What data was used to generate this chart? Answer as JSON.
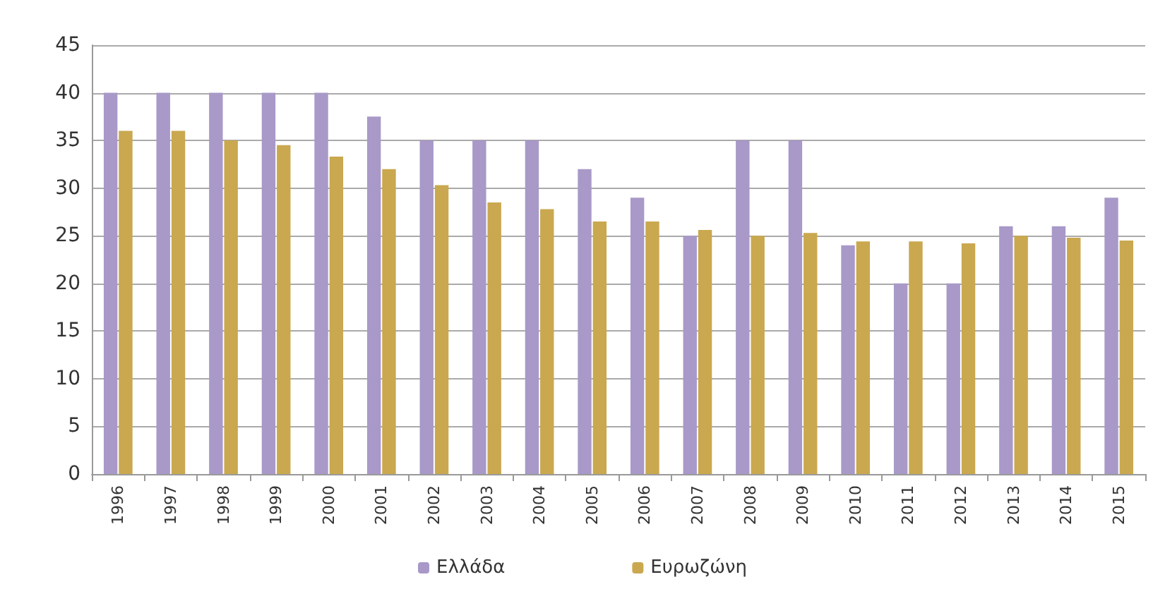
{
  "chart_data": {
    "type": "bar",
    "categories": [
      "1996",
      "1997",
      "1998",
      "1999",
      "2000",
      "2001",
      "2002",
      "2003",
      "2004",
      "2005",
      "2006",
      "2007",
      "2008",
      "2009",
      "2010",
      "2011",
      "2012",
      "2013",
      "2014",
      "2015"
    ],
    "series": [
      {
        "name": "Ελλάδα",
        "color": "#a899c8",
        "values": [
          40,
          40,
          40,
          40,
          40,
          37.5,
          35,
          35,
          35,
          32,
          29,
          25,
          35,
          35,
          24,
          20,
          20,
          26,
          26,
          29
        ]
      },
      {
        "name": "Ευρωζώνη",
        "color": "#c9a84f",
        "values": [
          36,
          36,
          35,
          34.5,
          33.3,
          32,
          30.3,
          28.5,
          27.8,
          26.5,
          26.5,
          25.6,
          25,
          25.3,
          24.4,
          24.4,
          24.2,
          25,
          24.8,
          24.5
        ]
      }
    ],
    "ylim": [
      0,
      45
    ],
    "yticks": [
      0,
      5,
      10,
      15,
      20,
      25,
      30,
      35,
      40,
      45
    ],
    "grid": "y",
    "legend": "bottom"
  }
}
